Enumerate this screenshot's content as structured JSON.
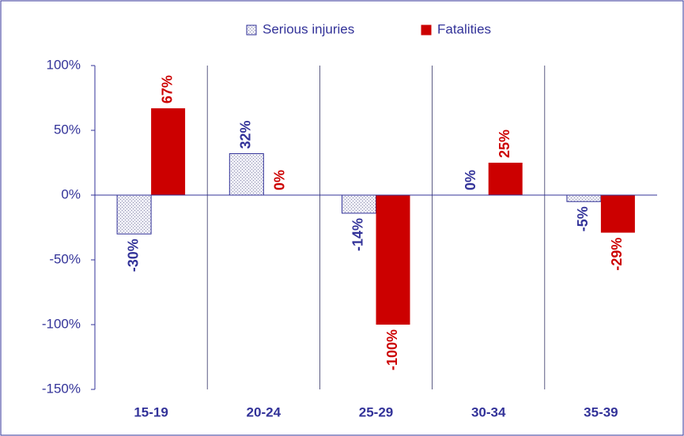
{
  "chart_data": {
    "type": "bar",
    "categories": [
      "15-19",
      "20-24",
      "25-29",
      "30-34",
      "35-39"
    ],
    "series": [
      {
        "name": "Serious injuries",
        "color": "#333399",
        "values": [
          -30,
          32,
          -14,
          0,
          -5
        ],
        "value_labels": [
          "-30%",
          "32%",
          "-14%",
          "0%",
          "-5%"
        ]
      },
      {
        "name": "Fatalities",
        "color": "#cc0000",
        "values": [
          67,
          0,
          -100,
          25,
          -29
        ],
        "value_labels": [
          "67%",
          "0%",
          "-100%",
          "25%",
          "-29%"
        ]
      }
    ],
    "ylim": [
      -150,
      100
    ],
    "yticks": [
      {
        "value": -150,
        "label": "-150%"
      },
      {
        "value": -100,
        "label": "-100%"
      },
      {
        "value": -50,
        "label": "-50%"
      },
      {
        "value": 0,
        "label": "0%"
      },
      {
        "value": 50,
        "label": "50%"
      },
      {
        "value": 100,
        "label": "100%"
      }
    ],
    "legend": "top"
  }
}
